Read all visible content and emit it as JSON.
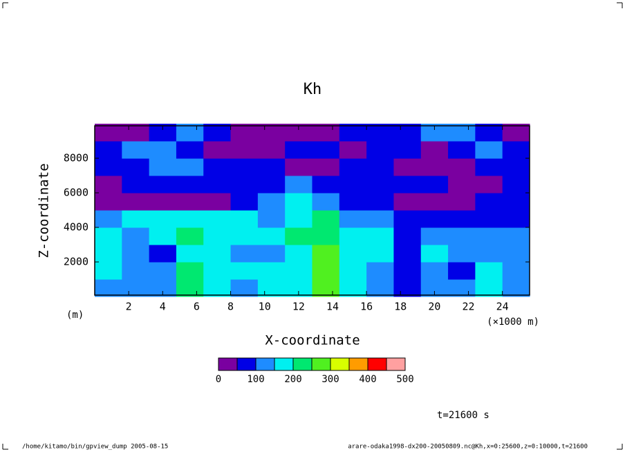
{
  "chart_data": {
    "type": "contourf",
    "title": "Kh",
    "x_label": "X-coordinate",
    "y_label": "Z-coordinate",
    "x_units": "(×1000 m)",
    "y_units": "(m)",
    "xlim": [
      0,
      25600
    ],
    "ylim": [
      0,
      10000
    ],
    "xticks": [
      {
        "value": 2000,
        "label": "2"
      },
      {
        "value": 4000,
        "label": "4"
      },
      {
        "value": 6000,
        "label": "6"
      },
      {
        "value": 8000,
        "label": "8"
      },
      {
        "value": 10000,
        "label": "10"
      },
      {
        "value": 12000,
        "label": "12"
      },
      {
        "value": 14000,
        "label": "14"
      },
      {
        "value": 16000,
        "label": "16"
      },
      {
        "value": 18000,
        "label": "18"
      },
      {
        "value": 20000,
        "label": "20"
      },
      {
        "value": 22000,
        "label": "22"
      },
      {
        "value": 24000,
        "label": "24"
      }
    ],
    "yticks": [
      2000,
      4000,
      6000,
      8000
    ],
    "x": [
      800,
      2400,
      4000,
      5600,
      7200,
      8800,
      10400,
      12000,
      13600,
      15200,
      16800,
      18400,
      20000,
      21600,
      23200,
      24800
    ],
    "z": [
      500,
      1500,
      2500,
      3500,
      4500,
      5500,
      6500,
      7500,
      8500,
      9500
    ],
    "values": [
      [
        125,
        125,
        125,
        225,
        175,
        125,
        175,
        175,
        275,
        175,
        125,
        75,
        125,
        125,
        175,
        125
      ],
      [
        175,
        125,
        125,
        225,
        175,
        175,
        175,
        175,
        275,
        175,
        125,
        75,
        125,
        75,
        175,
        125
      ],
      [
        175,
        125,
        75,
        175,
        175,
        125,
        125,
        175,
        275,
        175,
        175,
        75,
        175,
        125,
        125,
        125
      ],
      [
        175,
        125,
        175,
        225,
        175,
        175,
        175,
        225,
        225,
        175,
        175,
        75,
        125,
        125,
        125,
        125
      ],
      [
        125,
        175,
        175,
        175,
        175,
        175,
        125,
        175,
        225,
        125,
        125,
        75,
        75,
        75,
        75,
        75
      ],
      [
        25,
        25,
        25,
        25,
        25,
        75,
        125,
        175,
        125,
        75,
        75,
        25,
        25,
        25,
        75,
        75
      ],
      [
        25,
        75,
        75,
        75,
        75,
        75,
        75,
        125,
        75,
        75,
        75,
        75,
        75,
        25,
        25,
        75
      ],
      [
        75,
        75,
        125,
        125,
        75,
        75,
        75,
        25,
        25,
        75,
        75,
        25,
        25,
        25,
        75,
        75
      ],
      [
        75,
        125,
        125,
        75,
        25,
        25,
        25,
        75,
        75,
        25,
        75,
        75,
        25,
        75,
        125,
        75
      ],
      [
        25,
        25,
        75,
        125,
        75,
        25,
        25,
        25,
        25,
        75,
        75,
        75,
        125,
        125,
        75,
        25
      ]
    ],
    "levels": [
      0,
      50,
      100,
      150,
      200,
      250,
      300,
      350,
      400,
      450,
      500
    ],
    "colors": [
      "#7a00a0",
      "#0000e6",
      "#1e8cff",
      "#00f0f0",
      "#00e870",
      "#50f020",
      "#d8ff00",
      "#ff9c00",
      "#ff0000",
      "#ffa0a0"
    ],
    "colorbar_ticks": [
      0,
      100,
      200,
      300,
      400,
      500
    ],
    "time_label": "t=21600 s",
    "footer_left": "/home/kitamo/bin/gpview_dump  2005-08-15",
    "footer_right": "arare-odaka1998-dx200-20050809.nc@Kh,x=0:25600,z=0:10000,t=21600"
  }
}
